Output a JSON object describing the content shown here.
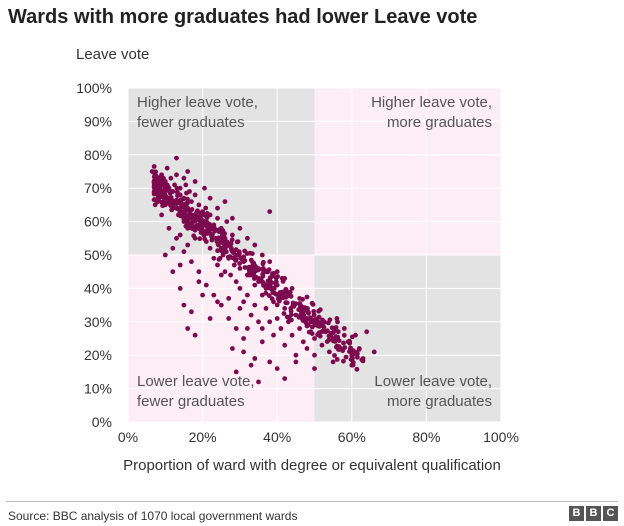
{
  "header": {
    "title": "Wards with more graduates had lower Leave vote"
  },
  "footer": {
    "source": "Source: BBC analysis of 1070 local government wards",
    "logo_letters": [
      "B",
      "B",
      "C"
    ]
  },
  "colors": {
    "point": "#7d0a4f",
    "quadrant_grey": "#e3e3e3",
    "quadrant_pink": "#fdeef6",
    "gridline": "#ffffff",
    "axis_text": "#333333"
  },
  "chart_data": {
    "type": "scatter",
    "title": "Wards with more graduates had lower Leave vote",
    "xlabel": "Proportion of ward with degree or equivalent qualification",
    "ylabel": "Leave vote",
    "xlim": [
      0,
      100
    ],
    "ylim": [
      0,
      100
    ],
    "x_ticks": [
      "0%",
      "20%",
      "40%",
      "60%",
      "80%",
      "100%"
    ],
    "y_ticks": [
      "0%",
      "10%",
      "20%",
      "30%",
      "40%",
      "50%",
      "60%",
      "70%",
      "80%",
      "90%",
      "100%"
    ],
    "grid": true,
    "quadrant_split": {
      "x": 50,
      "y": 50
    },
    "quadrants": [
      {
        "label_lines": [
          "Higher leave vote,",
          "fewer graduates"
        ],
        "position": "top-left"
      },
      {
        "label_lines": [
          "Higher leave vote,",
          "more graduates"
        ],
        "position": "top-right"
      },
      {
        "label_lines": [
          "Lower leave vote,",
          "fewer graduates"
        ],
        "position": "bottom-left"
      },
      {
        "label_lines": [
          "Lower leave vote,",
          "more graduates"
        ],
        "position": "bottom-right"
      }
    ],
    "trend": {
      "slope": -0.96,
      "intercept": 78
    },
    "points": [
      [
        6.5,
        75
      ],
      [
        7,
        72
      ],
      [
        7.5,
        69
      ],
      [
        8,
        66
      ],
      [
        8.5,
        71
      ],
      [
        9,
        74
      ],
      [
        9.5,
        68
      ],
      [
        10,
        72
      ],
      [
        10,
        65
      ],
      [
        10.5,
        76
      ],
      [
        11,
        70
      ],
      [
        11,
        67
      ],
      [
        11.5,
        73
      ],
      [
        12,
        69
      ],
      [
        12,
        64
      ],
      [
        12.5,
        71
      ],
      [
        13,
        79
      ],
      [
        13,
        74
      ],
      [
        13,
        66
      ],
      [
        13.5,
        62
      ],
      [
        14,
        70
      ],
      [
        14,
        68
      ],
      [
        14.5,
        65
      ],
      [
        15,
        73
      ],
      [
        15,
        60
      ],
      [
        15,
        67
      ],
      [
        15.5,
        71
      ],
      [
        16,
        64
      ],
      [
        16,
        58
      ],
      [
        16.5,
        69
      ],
      [
        17,
        62
      ],
      [
        17,
        66
      ],
      [
        17.5,
        60
      ],
      [
        18,
        68
      ],
      [
        18,
        55
      ],
      [
        18.5,
        63
      ],
      [
        19,
        59
      ],
      [
        19,
        65
      ],
      [
        19.5,
        61
      ],
      [
        20,
        57
      ],
      [
        20,
        63
      ],
      [
        20.5,
        70
      ],
      [
        21,
        60
      ],
      [
        21,
        54
      ],
      [
        21.5,
        58
      ],
      [
        22,
        62
      ],
      [
        22,
        52
      ],
      [
        22.5,
        56
      ],
      [
        23,
        59
      ],
      [
        23,
        49
      ],
      [
        23.5,
        55
      ],
      [
        24,
        61
      ],
      [
        24,
        47
      ],
      [
        24.5,
        57
      ],
      [
        25,
        52
      ],
      [
        25,
        58
      ],
      [
        25.5,
        50
      ],
      [
        26,
        55
      ],
      [
        26,
        45
      ],
      [
        26.5,
        60
      ],
      [
        27,
        49
      ],
      [
        27,
        53
      ],
      [
        27.5,
        44
      ],
      [
        28,
        51
      ],
      [
        28,
        56
      ],
      [
        28.5,
        47
      ],
      [
        29,
        42
      ],
      [
        29,
        50
      ],
      [
        29.5,
        54
      ],
      [
        30,
        46
      ],
      [
        30,
        40
      ],
      [
        31,
        48
      ],
      [
        31,
        36
      ],
      [
        32,
        44
      ],
      [
        32,
        38
      ],
      [
        33,
        46
      ],
      [
        33,
        32
      ],
      [
        34,
        41
      ],
      [
        34,
        35
      ],
      [
        35,
        43
      ],
      [
        35,
        30
      ],
      [
        36,
        38
      ],
      [
        36,
        28
      ],
      [
        37,
        34
      ],
      [
        37,
        40
      ],
      [
        38,
        63
      ],
      [
        38,
        30
      ],
      [
        39,
        36
      ],
      [
        39,
        26
      ],
      [
        40,
        41
      ],
      [
        40,
        31
      ],
      [
        41,
        28
      ],
      [
        42,
        34
      ],
      [
        42,
        23
      ],
      [
        43,
        30
      ],
      [
        44,
        26
      ],
      [
        45,
        32
      ],
      [
        45,
        20
      ],
      [
        46,
        28
      ],
      [
        47,
        24
      ],
      [
        48,
        31
      ],
      [
        48,
        22
      ],
      [
        49,
        27
      ],
      [
        50,
        20
      ],
      [
        50,
        25
      ],
      [
        51,
        29
      ],
      [
        52,
        23
      ],
      [
        53,
        27
      ],
      [
        54,
        21
      ],
      [
        55,
        25
      ],
      [
        56,
        31
      ],
      [
        57,
        22
      ],
      [
        58,
        28
      ],
      [
        59,
        24
      ],
      [
        60,
        20
      ],
      [
        61,
        26
      ],
      [
        62,
        22
      ],
      [
        63,
        19
      ],
      [
        64,
        27
      ],
      [
        66,
        21
      ],
      [
        12,
        45
      ],
      [
        14,
        40
      ],
      [
        15,
        35
      ],
      [
        16,
        28
      ],
      [
        17,
        33
      ],
      [
        18,
        26
      ],
      [
        14,
        47
      ],
      [
        19,
        42
      ],
      [
        20,
        38
      ],
      [
        22,
        31
      ],
      [
        24,
        36
      ],
      [
        25,
        44
      ],
      [
        27,
        37
      ],
      [
        28,
        22
      ],
      [
        29,
        15
      ],
      [
        30,
        34
      ],
      [
        31,
        21
      ],
      [
        33,
        17
      ],
      [
        35,
        12
      ],
      [
        36,
        24
      ],
      [
        32,
        28
      ],
      [
        34,
        19
      ],
      [
        38,
        18
      ],
      [
        40,
        16
      ],
      [
        42,
        13
      ],
      [
        45,
        18
      ],
      [
        50,
        16
      ],
      [
        55,
        18
      ],
      [
        60,
        17
      ],
      [
        26,
        66
      ],
      [
        22,
        67
      ],
      [
        18,
        72
      ],
      [
        16,
        75
      ],
      [
        24,
        64
      ],
      [
        28,
        61
      ],
      [
        30,
        58
      ],
      [
        32,
        55
      ],
      [
        34,
        53
      ],
      [
        36,
        50
      ],
      [
        38,
        48
      ],
      [
        40,
        45
      ],
      [
        42,
        43
      ],
      [
        44,
        40
      ],
      [
        46,
        37
      ],
      [
        9,
        62
      ],
      [
        11,
        58
      ],
      [
        13,
        55
      ],
      [
        15,
        51
      ],
      [
        17,
        48
      ],
      [
        19,
        45
      ],
      [
        21,
        41
      ],
      [
        23,
        38
      ],
      [
        25,
        35
      ],
      [
        27,
        31
      ],
      [
        29,
        28
      ],
      [
        31,
        25
      ],
      [
        10,
        50
      ],
      [
        12,
        52
      ],
      [
        14,
        56
      ],
      [
        16,
        53
      ]
    ]
  }
}
